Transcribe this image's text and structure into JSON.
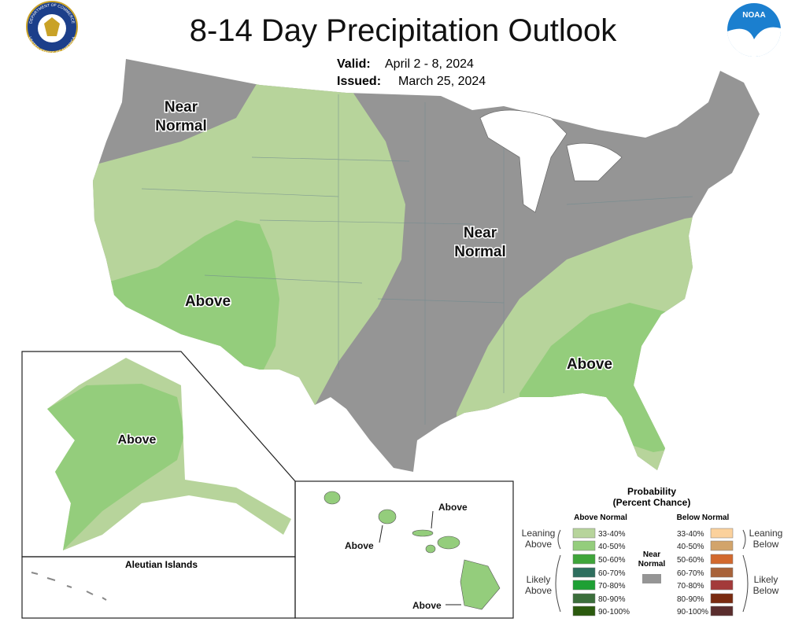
{
  "header": {
    "title": "8-14 Day Precipitation Outlook",
    "valid_label": "Valid:",
    "valid": "April 2 - 8, 2024",
    "issued_label": "Issued:",
    "issued": "March 25, 2024"
  },
  "logos": {
    "commerce_top": "DEPARTMENT OF COMMERCE",
    "commerce_bottom": "UNITED STATES OF AMERICA",
    "noaa": "NOAA"
  },
  "map": {
    "labels": [
      [
        "Near",
        "Normal"
      ],
      [
        "Near",
        "Normal"
      ],
      [
        "Above"
      ],
      [
        "Above"
      ],
      [
        "Above"
      ],
      [
        "Aleutian Islands"
      ],
      [
        "Above"
      ],
      [
        "Above"
      ],
      [
        "Above"
      ]
    ]
  },
  "legend": {
    "title": "Probability",
    "subtitle": "(Percent Chance)",
    "above_heading": "Above Normal",
    "below_heading": "Below Normal",
    "above_entries": [
      {
        "range": "33-40%",
        "color": "#b7d49b"
      },
      {
        "range": "40-50%",
        "color": "#94cd7c"
      },
      {
        "range": "50-60%",
        "color": "#3fa53a"
      },
      {
        "range": "60-70%",
        "color": "#2e6e5e"
      },
      {
        "range": "70-80%",
        "color": "#1ea034"
      },
      {
        "range": "80-90%",
        "color": "#3b6e3b"
      },
      {
        "range": "90-100%",
        "color": "#2b5a0e"
      }
    ],
    "below_entries": [
      {
        "range": "33-40%",
        "color": "#fbd19c"
      },
      {
        "range": "40-50%",
        "color": "#d2a46b"
      },
      {
        "range": "50-60%",
        "color": "#d2692e"
      },
      {
        "range": "60-70%",
        "color": "#a8633a"
      },
      {
        "range": "70-80%",
        "color": "#a33a3a"
      },
      {
        "range": "80-90%",
        "color": "#7a2b10"
      },
      {
        "range": "90-100%",
        "color": "#5a2d2d"
      }
    ],
    "near_normal": {
      "lines": [
        "Near",
        "Normal"
      ],
      "color": "#959595"
    },
    "leaning_above": [
      "Leaning",
      "Above"
    ],
    "likely_above": [
      "Likely",
      "Above"
    ],
    "leaning_below": [
      "Leaning",
      "Below"
    ],
    "likely_below": [
      "Likely",
      "Below"
    ]
  }
}
